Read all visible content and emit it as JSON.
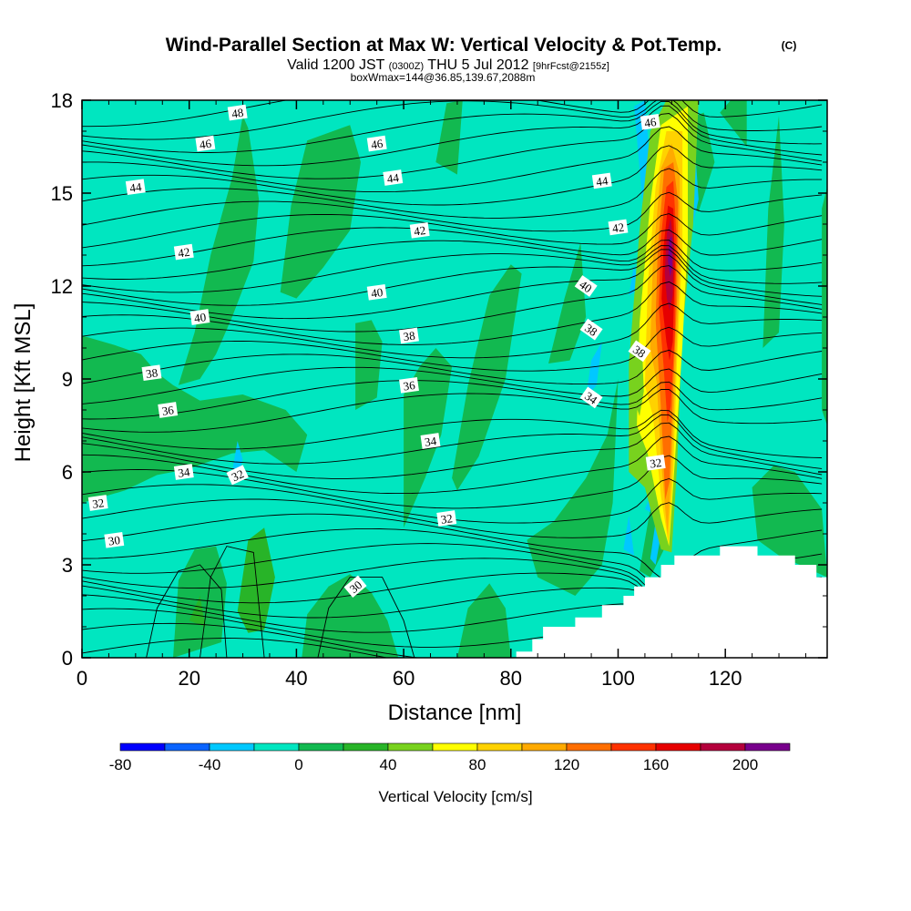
{
  "chart_data": {
    "type": "heatmap",
    "title": "Wind-Parallel Section at Max W: Vertical Velocity & Pot.Temp.",
    "title_mark": "(C)",
    "subtitle": {
      "valid": "Valid 1200 JST",
      "utc": "(0300Z)",
      "date": "THU 5 Jul 2012",
      "forecast": "[9hrFcst@2155z]"
    },
    "subtitle2": "boxWmax=144@36.85,139.67,2088m",
    "xlabel": "Distance [nm]",
    "ylabel": "Height [Kft MSL]",
    "xlim": [
      0,
      139
    ],
    "ylim": [
      0,
      18
    ],
    "x_ticks": [
      "0",
      "20",
      "40",
      "60",
      "80",
      "100",
      "120"
    ],
    "y_ticks": [
      "0",
      "3",
      "6",
      "9",
      "12",
      "15",
      "18"
    ],
    "colorbar": {
      "label": "Vertical Velocity [cm/s]",
      "range": [
        -80,
        220
      ],
      "step": 20,
      "tick_labels": [
        "-80",
        "-40",
        "0",
        "40",
        "80",
        "120",
        "160",
        "200"
      ],
      "colors": [
        "#0000ff",
        "#0a64ff",
        "#00c8ff",
        "#00e6c0",
        "#12b950",
        "#28b428",
        "#78d21e",
        "#ffff00",
        "#ffd200",
        "#ffaa00",
        "#ff6e00",
        "#ff3200",
        "#e60000",
        "#b4003c",
        "#78008c"
      ]
    },
    "max_updraft_core": {
      "x": 109.5,
      "peak_level_kft": 13,
      "peak_value": 200
    },
    "theta_contours": {
      "interval": 1,
      "labels": [
        {
          "value": "48",
          "x": 29,
          "y": 17.6
        },
        {
          "value": "46",
          "x": 23,
          "y": 16.6
        },
        {
          "value": "46",
          "x": 55,
          "y": 16.6
        },
        {
          "value": "46",
          "x": 106,
          "y": 17.3
        },
        {
          "value": "44",
          "x": 10,
          "y": 15.2
        },
        {
          "value": "44",
          "x": 58,
          "y": 15.5
        },
        {
          "value": "44",
          "x": 97,
          "y": 15.4
        },
        {
          "value": "42",
          "x": 19,
          "y": 13.1
        },
        {
          "value": "42",
          "x": 63,
          "y": 13.8
        },
        {
          "value": "42",
          "x": 100,
          "y": 13.9
        },
        {
          "value": "40",
          "x": 22,
          "y": 11.0
        },
        {
          "value": "40",
          "x": 55,
          "y": 11.8
        },
        {
          "value": "40",
          "x": 94,
          "y": 12.0
        },
        {
          "value": "38",
          "x": 13,
          "y": 9.2
        },
        {
          "value": "38",
          "x": 61,
          "y": 10.4
        },
        {
          "value": "38",
          "x": 95,
          "y": 10.6
        },
        {
          "value": "38",
          "x": 104,
          "y": 9.9
        },
        {
          "value": "36",
          "x": 16,
          "y": 8.0
        },
        {
          "value": "36",
          "x": 61,
          "y": 8.8
        },
        {
          "value": "34",
          "x": 19,
          "y": 6.0
        },
        {
          "value": "34",
          "x": 65,
          "y": 7.0
        },
        {
          "value": "34",
          "x": 95,
          "y": 8.4
        },
        {
          "value": "32",
          "x": 3,
          "y": 5.0
        },
        {
          "value": "32",
          "x": 29,
          "y": 5.9
        },
        {
          "value": "32",
          "x": 68,
          "y": 4.5
        },
        {
          "value": "32",
          "x": 107,
          "y": 6.3
        },
        {
          "value": "30",
          "x": 6,
          "y": 3.8
        },
        {
          "value": "30",
          "x": 51,
          "y": 2.3
        }
      ]
    },
    "terrain_profile": [
      [
        80,
        0
      ],
      [
        81,
        0.2
      ],
      [
        84,
        0.6
      ],
      [
        86,
        1.0
      ],
      [
        91,
        1.0
      ],
      [
        92,
        1.3
      ],
      [
        96,
        1.3
      ],
      [
        97,
        1.7
      ],
      [
        100,
        1.7
      ],
      [
        101,
        2.0
      ],
      [
        102,
        2.0
      ],
      [
        103,
        2.3
      ],
      [
        104,
        2.3
      ],
      [
        105,
        2.6
      ],
      [
        107,
        2.6
      ],
      [
        108,
        3.0
      ],
      [
        110,
        3.0
      ],
      [
        110.5,
        3.3
      ],
      [
        115,
        3.3
      ],
      [
        118,
        3.3
      ],
      [
        119,
        3.6
      ],
      [
        125,
        3.6
      ],
      [
        126,
        3.3
      ],
      [
        131,
        3.3
      ],
      [
        133,
        3.0
      ],
      [
        136,
        3.0
      ],
      [
        137,
        2.6
      ],
      [
        139,
        2.6
      ]
    ]
  }
}
